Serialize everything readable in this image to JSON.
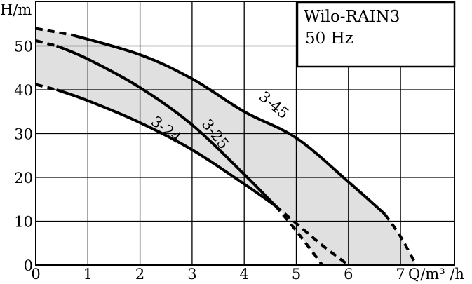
{
  "chart_data": {
    "type": "line",
    "legend_title": "Wilo-RAIN3",
    "legend_subtitle": "50 Hz",
    "legend_placement": "top-right",
    "ylabel": "H/m",
    "xlabel": "Q/m³ /h",
    "xlim": [
      0,
      8
    ],
    "ylim": [
      0,
      58
    ],
    "grid": true,
    "x_ticks": [
      "0",
      "1",
      "2",
      "3",
      "4",
      "5",
      "6",
      "7"
    ],
    "y_ticks": [
      "0",
      "10",
      "20",
      "30",
      "40",
      "50"
    ],
    "x_tick_values": [
      0,
      1,
      2,
      3,
      4,
      5,
      6,
      7
    ],
    "y_tick_values": [
      0,
      10,
      20,
      30,
      40,
      50
    ],
    "series": [
      {
        "name": "3-24",
        "solid": [
          [
            0.4,
            40
          ],
          [
            1,
            37.5
          ],
          [
            2,
            32.5
          ],
          [
            3,
            26.3
          ],
          [
            4,
            18.5
          ],
          [
            4.6,
            13.5
          ]
        ],
        "dashed_start": [
          [
            0,
            41.2
          ],
          [
            0.4,
            40
          ]
        ],
        "dashed_end": [
          [
            4.6,
            13.5
          ],
          [
            5,
            7.8
          ],
          [
            5.5,
            0
          ]
        ]
      },
      {
        "name": "3-25",
        "solid": [
          [
            0.4,
            50
          ],
          [
            1,
            47
          ],
          [
            2,
            40.5
          ],
          [
            3,
            32
          ],
          [
            4,
            20.7
          ],
          [
            4.6,
            13.5
          ]
        ],
        "dashed_start": [
          [
            0,
            51.2
          ],
          [
            0.4,
            50
          ]
        ],
        "dashed_end": [
          [
            4.6,
            13.5
          ],
          [
            5,
            9.5
          ],
          [
            5.5,
            4.5
          ],
          [
            6,
            0
          ]
        ]
      },
      {
        "name": "3-45",
        "solid": [
          [
            0.7,
            52.5
          ],
          [
            2,
            48
          ],
          [
            3,
            42.5
          ],
          [
            4,
            35
          ],
          [
            5,
            29
          ],
          [
            6,
            19
          ],
          [
            6.7,
            11.6
          ]
        ],
        "dashed_start": [
          [
            0,
            54
          ],
          [
            0.7,
            52.5
          ]
        ],
        "dashed_end": [
          [
            6.7,
            11.6
          ],
          [
            7,
            6.5
          ],
          [
            7.3,
            0
          ]
        ]
      }
    ],
    "band_color": "#e0e0e0",
    "line_color": "#000000"
  }
}
